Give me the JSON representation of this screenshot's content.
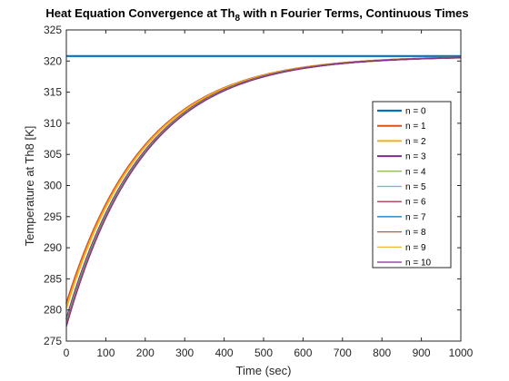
{
  "chart_data": {
    "type": "line",
    "title_main": "Heat Equation Convergence at Th",
    "title_sub": "8",
    "title_rest": " with n Fourier Terms, Continuous Times",
    "xlabel": "Time (sec)",
    "ylabel": "Temperature at Th8 [K]",
    "xlim": [
      0,
      1000
    ],
    "ylim": [
      275,
      325
    ],
    "xticks": [
      0,
      100,
      200,
      300,
      400,
      500,
      600,
      700,
      800,
      900,
      1000
    ],
    "yticks": [
      275,
      280,
      285,
      290,
      295,
      300,
      305,
      310,
      315,
      320,
      325
    ],
    "grid": false,
    "legend_position": "right",
    "model": {
      "steady_state": 320.8,
      "time_constant": 195
    },
    "series": [
      {
        "name": "n = 0",
        "color": "#0072BD",
        "kind": "constant",
        "value": 320.8
      },
      {
        "name": "n = 1",
        "color": "#D95319",
        "kind": "curve",
        "start": 281.0
      },
      {
        "name": "n = 2",
        "color": "#EDB120",
        "kind": "curve",
        "start": 280.3
      },
      {
        "name": "n = 3",
        "color": "#7E2F8E",
        "kind": "curve",
        "start": 278.5
      },
      {
        "name": "n = 4",
        "color": "#77AC30",
        "kind": "curve",
        "start": 278.2
      },
      {
        "name": "n = 5",
        "color": "#4DBEEE",
        "kind": "curve",
        "start": 277.9
      },
      {
        "name": "n = 6",
        "color": "#A2142F",
        "kind": "curve",
        "start": 277.7
      },
      {
        "name": "n = 7",
        "color": "#0072BD",
        "kind": "curve",
        "start": 277.6
      },
      {
        "name": "n = 8",
        "color": "#D95319",
        "kind": "curve",
        "start": 277.5
      },
      {
        "name": "n = 9",
        "color": "#EDB120",
        "kind": "curve",
        "start": 277.4
      },
      {
        "name": "n = 10",
        "color": "#7E2F8E",
        "kind": "curve",
        "start": 277.3
      }
    ]
  }
}
